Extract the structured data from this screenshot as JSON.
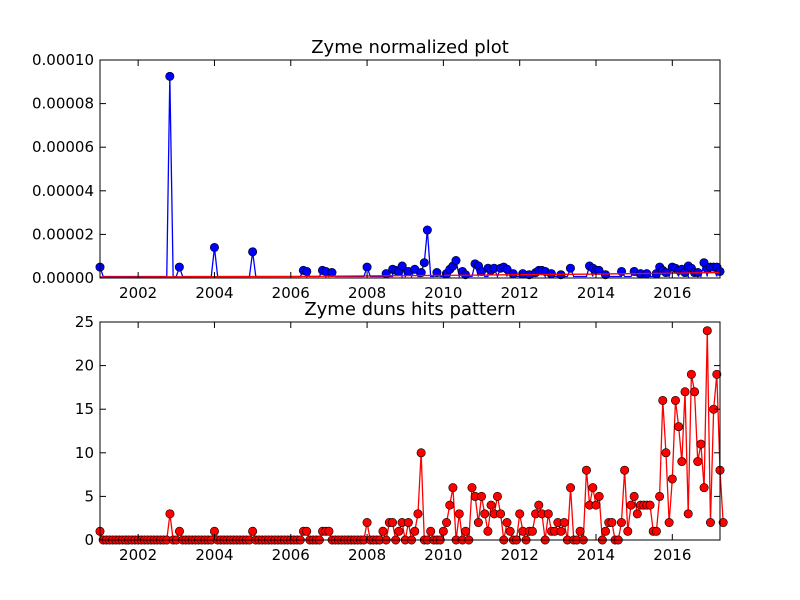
{
  "chart_data": [
    {
      "type": "line",
      "title": "Zyme normalized plot",
      "xlabel": "",
      "ylabel": "",
      "xlim": [
        2001.0,
        2017.25
      ],
      "ylim": [
        0,
        0.0001
      ],
      "grid": false,
      "x_ticks": [
        "2002",
        "2004",
        "2006",
        "2008",
        "2010",
        "2012",
        "2014",
        "2016"
      ],
      "y_ticks": [
        "0.00000",
        "0.00002",
        "0.00004",
        "0.00006",
        "0.00008",
        "0.00010"
      ],
      "series": [
        {
          "color": "#0000ff",
          "marker": "circle",
          "points": [
            [
              2001.0,
              5e-06
            ],
            [
              2002.83,
              9.25e-05
            ],
            [
              2003.08,
              5e-06
            ],
            [
              2004.0,
              1.4e-05
            ],
            [
              2005.0,
              1.2e-05
            ],
            [
              2006.33,
              3.5e-06
            ],
            [
              2006.42,
              3e-06
            ],
            [
              2006.83,
              3.5e-06
            ],
            [
              2006.92,
              3e-06
            ],
            [
              2007.08,
              2.5e-06
            ],
            [
              2008.0,
              5e-06
            ],
            [
              2008.5,
              2e-06
            ],
            [
              2008.67,
              4e-06
            ],
            [
              2008.75,
              3.5e-06
            ],
            [
              2008.83,
              3e-06
            ],
            [
              2008.92,
              5.5e-06
            ],
            [
              2009.08,
              3e-06
            ],
            [
              2009.25,
              4e-06
            ],
            [
              2009.42,
              2.5e-06
            ],
            [
              2009.5,
              7e-06
            ],
            [
              2009.58,
              2.2e-05
            ],
            [
              2009.83,
              2.5e-06
            ],
            [
              2010.08,
              2e-06
            ],
            [
              2010.17,
              4e-06
            ],
            [
              2010.25,
              5.5e-06
            ],
            [
              2010.33,
              8e-06
            ],
            [
              2010.5,
              3e-06
            ],
            [
              2010.58,
              1.5e-06
            ],
            [
              2010.83,
              6.5e-06
            ],
            [
              2010.92,
              5.5e-06
            ],
            [
              2011.0,
              3e-06
            ],
            [
              2011.17,
              4.5e-06
            ],
            [
              2011.25,
              3.5e-06
            ],
            [
              2011.33,
              4.5e-06
            ],
            [
              2011.5,
              4.5e-06
            ],
            [
              2011.58,
              5e-06
            ],
            [
              2011.67,
              4e-06
            ],
            [
              2011.83,
              2e-06
            ],
            [
              2012.08,
              2e-06
            ],
            [
              2012.25,
              1.5e-06
            ],
            [
              2012.42,
              2.5e-06
            ],
            [
              2012.5,
              3.5e-06
            ],
            [
              2012.58,
              3.5e-06
            ],
            [
              2012.67,
              3e-06
            ],
            [
              2012.83,
              2e-06
            ],
            [
              2013.08,
              1.5e-06
            ],
            [
              2013.33,
              4.5e-06
            ],
            [
              2013.83,
              5.5e-06
            ],
            [
              2013.92,
              4.5e-06
            ],
            [
              2014.0,
              3.5e-06
            ],
            [
              2014.08,
              3.5e-06
            ],
            [
              2014.25,
              1.5e-06
            ],
            [
              2014.67,
              3e-06
            ],
            [
              2015.0,
              3e-06
            ],
            [
              2015.17,
              2e-06
            ],
            [
              2015.33,
              2e-06
            ],
            [
              2015.58,
              2e-06
            ],
            [
              2015.67,
              5e-06
            ],
            [
              2015.75,
              3.5e-06
            ],
            [
              2015.83,
              2.5e-06
            ],
            [
              2016.0,
              5e-06
            ],
            [
              2016.08,
              4.5e-06
            ],
            [
              2016.17,
              3.5e-06
            ],
            [
              2016.25,
              4e-06
            ],
            [
              2016.33,
              2.5e-06
            ],
            [
              2016.42,
              5.5e-06
            ],
            [
              2016.5,
              4.5e-06
            ],
            [
              2016.58,
              2.5e-06
            ],
            [
              2016.67,
              2.5e-06
            ],
            [
              2016.83,
              7e-06
            ],
            [
              2016.92,
              4e-06
            ],
            [
              2017.0,
              5e-06
            ],
            [
              2017.08,
              5e-06
            ],
            [
              2017.17,
              5e-06
            ],
            [
              2017.25,
              3e-06
            ]
          ],
          "baseline": 7e-07
        },
        {
          "color": "#ff0000",
          "marker": "none",
          "points": [
            [
              2001.0,
              5e-07
            ],
            [
              2006.0,
              7e-07
            ],
            [
              2010.0,
              1.2e-06
            ],
            [
              2014.0,
              1.8e-06
            ],
            [
              2017.25,
              2.5e-06
            ]
          ]
        }
      ]
    },
    {
      "type": "line",
      "title": "Zyme duns hits pattern",
      "xlabel": "",
      "ylabel": "",
      "xlim": [
        2001.0,
        2017.25
      ],
      "ylim": [
        0,
        25
      ],
      "grid": false,
      "x_ticks": [
        "2002",
        "2004",
        "2006",
        "2008",
        "2010",
        "2012",
        "2014",
        "2016"
      ],
      "y_ticks": [
        "0",
        "5",
        "10",
        "15",
        "20",
        "25"
      ],
      "series": [
        {
          "color": "#ff0000",
          "marker": "circle",
          "start": 2001.0,
          "step_months": 1,
          "values": [
            1,
            0,
            0,
            0,
            0,
            0,
            0,
            0,
            0,
            0,
            0,
            0,
            0,
            0,
            0,
            0,
            0,
            0,
            0,
            0,
            0,
            0,
            3,
            0,
            0,
            1,
            0,
            0,
            0,
            0,
            0,
            0,
            0,
            0,
            0,
            0,
            1,
            0,
            0,
            0,
            0,
            0,
            0,
            0,
            0,
            0,
            0,
            0,
            1,
            0,
            0,
            0,
            0,
            0,
            0,
            0,
            0,
            0,
            0,
            0,
            0,
            0,
            0,
            0,
            1,
            1,
            0,
            0,
            0,
            0,
            1,
            1,
            1,
            0,
            0,
            0,
            0,
            0,
            0,
            0,
            0,
            0,
            0,
            0,
            2,
            0,
            0,
            0,
            0,
            1,
            0,
            2,
            2,
            0,
            1,
            2,
            0,
            2,
            0,
            1,
            3,
            10,
            0,
            0,
            1,
            0,
            0,
            0,
            1,
            2,
            4,
            6,
            0,
            3,
            0,
            1,
            0,
            6,
            5,
            2,
            5,
            3,
            1,
            4,
            3,
            5,
            3,
            0,
            2,
            1,
            0,
            0,
            3,
            1,
            0,
            1,
            1,
            3,
            4,
            3,
            0,
            3,
            1,
            1,
            2,
            1,
            2,
            0,
            6,
            0,
            0,
            1,
            0,
            8,
            4,
            6,
            4,
            5,
            0,
            1,
            2,
            2,
            0,
            0,
            2,
            8,
            1,
            4,
            5,
            3,
            4,
            4,
            4,
            4,
            1,
            1,
            5,
            16,
            10,
            2,
            7,
            16,
            13,
            9,
            17,
            3,
            19,
            17,
            9,
            11,
            6,
            24,
            2,
            15,
            19,
            8,
            2
          ],
          "xaxis_dates_note": "monthly from 2001-01"
        }
      ]
    }
  ]
}
